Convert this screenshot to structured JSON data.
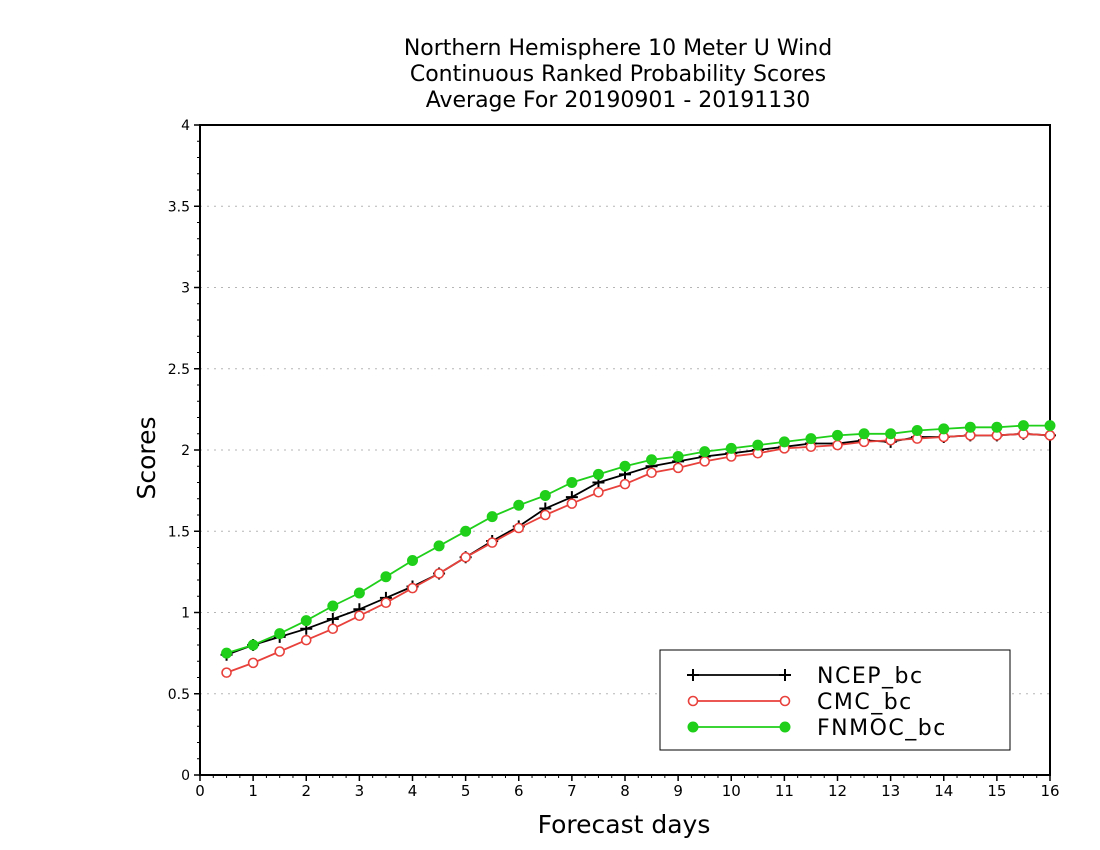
{
  "chart_data": {
    "type": "line",
    "title": [
      "Northern Hemisphere 10 Meter U Wind",
      "Continuous Ranked Probability Scores",
      "Average For 20190901 - 20191130"
    ],
    "xlabel": "Forecast days",
    "ylabel": "Scores",
    "xlim": [
      0,
      16
    ],
    "ylim": [
      0,
      4
    ],
    "x_ticks": [
      0,
      1,
      2,
      3,
      4,
      5,
      6,
      7,
      8,
      9,
      10,
      11,
      12,
      13,
      14,
      15,
      16
    ],
    "y_ticks": [
      0,
      0.5,
      1,
      1.5,
      2,
      2.5,
      3,
      3.5,
      4
    ],
    "y_tick_labels": [
      "0",
      "0.5",
      "1",
      "1.5",
      "2",
      "2.5",
      "3",
      "3.5",
      "4"
    ],
    "grid": "horizontal dotted",
    "legend_position": "bottom-right",
    "x": [
      0.5,
      1,
      1.5,
      2,
      2.5,
      3,
      3.5,
      4,
      4.5,
      5,
      5.5,
      6,
      6.5,
      7,
      7.5,
      8,
      8.5,
      9,
      9.5,
      10,
      10.5,
      11,
      11.5,
      12,
      12.5,
      13,
      13.5,
      14,
      14.5,
      15,
      15.5,
      16
    ],
    "series": [
      {
        "name": "NCEP_bc",
        "color": "#000000",
        "marker": "plus",
        "values": [
          0.74,
          0.8,
          0.85,
          0.9,
          0.96,
          1.02,
          1.09,
          1.16,
          1.24,
          1.34,
          1.44,
          1.53,
          1.64,
          1.71,
          1.8,
          1.85,
          1.9,
          1.93,
          1.96,
          1.98,
          2.0,
          2.02,
          2.04,
          2.04,
          2.06,
          2.05,
          2.08,
          2.08,
          2.09,
          2.09,
          2.1,
          2.09
        ]
      },
      {
        "name": "CMC_bc",
        "color": "#e8413c",
        "marker": "open-circle",
        "values": [
          0.63,
          0.69,
          0.76,
          0.83,
          0.9,
          0.98,
          1.06,
          1.15,
          1.24,
          1.34,
          1.43,
          1.52,
          1.6,
          1.67,
          1.74,
          1.79,
          1.86,
          1.89,
          1.93,
          1.96,
          1.98,
          2.01,
          2.02,
          2.03,
          2.05,
          2.06,
          2.07,
          2.08,
          2.09,
          2.09,
          2.1,
          2.09
        ]
      },
      {
        "name": "FNMOC_bc",
        "color": "#1fcf1a",
        "marker": "filled-circle",
        "values": [
          0.75,
          0.8,
          0.87,
          0.95,
          1.04,
          1.12,
          1.22,
          1.32,
          1.41,
          1.5,
          1.59,
          1.66,
          1.72,
          1.8,
          1.85,
          1.9,
          1.94,
          1.96,
          1.99,
          2.01,
          2.03,
          2.05,
          2.07,
          2.09,
          2.1,
          2.1,
          2.12,
          2.13,
          2.14,
          2.14,
          2.15,
          2.15
        ]
      }
    ]
  }
}
